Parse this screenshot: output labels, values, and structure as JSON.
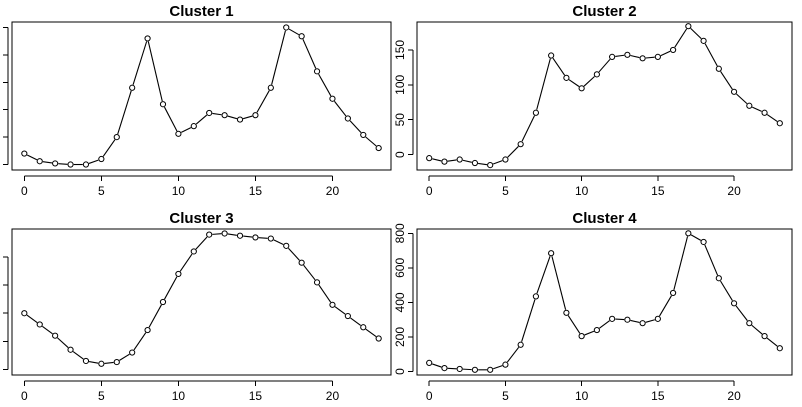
{
  "chart_data": [
    {
      "type": "line",
      "title": "Cluster 1",
      "x": [
        0,
        1,
        2,
        3,
        4,
        5,
        6,
        7,
        8,
        9,
        10,
        11,
        12,
        13,
        14,
        15,
        16,
        17,
        18,
        19,
        20,
        21,
        22,
        23
      ],
      "values": [
        10,
        3,
        1,
        0,
        0,
        5,
        25,
        70,
        115,
        55,
        28,
        35,
        47,
        45,
        41,
        45,
        70,
        125,
        117,
        85,
        60,
        42,
        27,
        15
      ],
      "xlim": [
        -0.8,
        23.8
      ],
      "ylim": [
        -5,
        130
      ],
      "xticks": [
        0,
        5,
        10,
        15,
        20
      ],
      "yticks": [
        0,
        25,
        50,
        75,
        100,
        125
      ],
      "ytick_labels": false
    },
    {
      "type": "line",
      "title": "Cluster 2",
      "x": [
        0,
        1,
        2,
        3,
        4,
        5,
        6,
        7,
        8,
        9,
        10,
        11,
        12,
        13,
        14,
        15,
        16,
        17,
        18,
        19,
        20,
        21,
        22,
        23
      ],
      "values": [
        -5,
        -10,
        -7,
        -12,
        -15,
        -7,
        15,
        60,
        142,
        110,
        95,
        115,
        140,
        143,
        138,
        140,
        150,
        184,
        163,
        123,
        90,
        70,
        60,
        45
      ],
      "xlim": [
        -0.8,
        23.8
      ],
      "ylim": [
        -22,
        190
      ],
      "xticks": [
        0,
        5,
        10,
        15,
        20
      ],
      "yticks": [
        0,
        50,
        100,
        150
      ],
      "ytick_labels": true
    },
    {
      "type": "line",
      "title": "Cluster 3",
      "x": [
        0,
        1,
        2,
        3,
        4,
        5,
        6,
        7,
        8,
        9,
        10,
        11,
        12,
        13,
        14,
        15,
        16,
        17,
        18,
        19,
        20,
        21,
        22,
        23
      ],
      "values": [
        100,
        80,
        60,
        35,
        15,
        10,
        13,
        30,
        70,
        120,
        170,
        210,
        240,
        242,
        238,
        235,
        233,
        220,
        190,
        155,
        115,
        95,
        75,
        55
      ],
      "xlim": [
        -0.8,
        23.8
      ],
      "ylim": [
        -10,
        250
      ],
      "xticks": [
        0,
        5,
        10,
        15,
        20
      ],
      "yticks": [
        0,
        50,
        100,
        150,
        200
      ],
      "ytick_labels": false
    },
    {
      "type": "line",
      "title": "Cluster 4",
      "x": [
        0,
        1,
        2,
        3,
        4,
        5,
        6,
        7,
        8,
        9,
        10,
        11,
        12,
        13,
        14,
        15,
        16,
        17,
        18,
        19,
        20,
        21,
        22,
        23
      ],
      "values": [
        50,
        20,
        15,
        10,
        10,
        40,
        155,
        435,
        685,
        340,
        205,
        240,
        305,
        300,
        280,
        305,
        455,
        800,
        750,
        540,
        395,
        280,
        205,
        135
      ],
      "xlim": [
        -0.8,
        23.8
      ],
      "ylim": [
        -20,
        825
      ],
      "xticks": [
        0,
        5,
        10,
        15,
        20
      ],
      "yticks": [
        0,
        200,
        400,
        600,
        800
      ],
      "ytick_labels": true
    }
  ]
}
